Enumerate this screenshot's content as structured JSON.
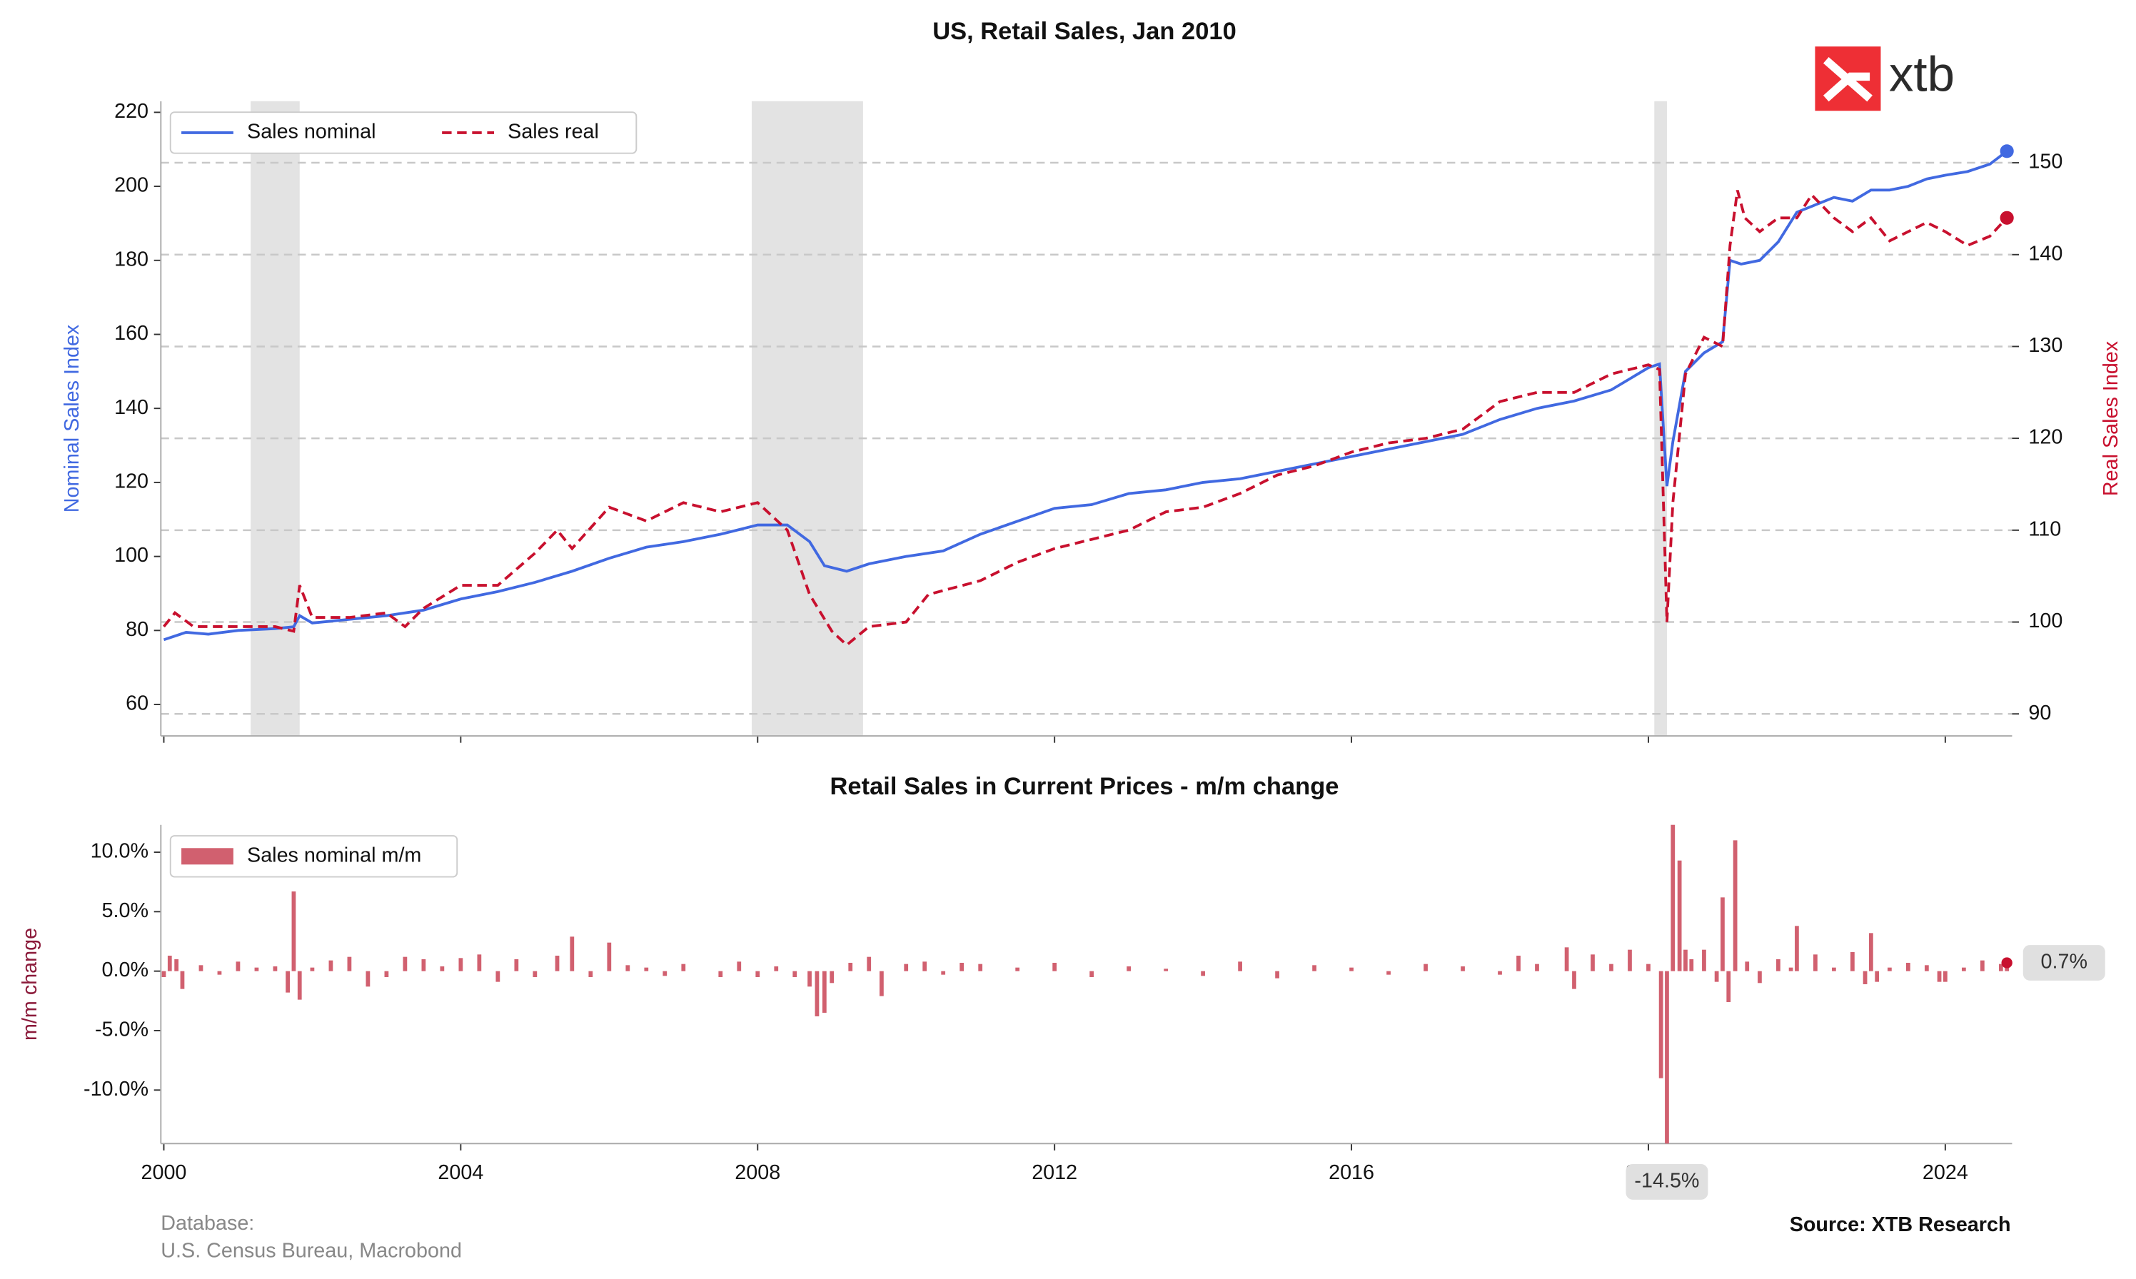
{
  "chart_data": [
    {
      "type": "line",
      "title": "US, Retail Sales, Jan 2010",
      "y_label": "Nominal Sales Index",
      "y2_label": "Real Sales Index",
      "xlim": [
        1999.96,
        2024.9
      ],
      "xticks": [
        2000,
        2004,
        2008,
        2012,
        2016,
        2020,
        2024
      ],
      "ylim": [
        51.5,
        223
      ],
      "yticks": [
        60,
        80,
        100,
        120,
        140,
        160,
        180,
        200,
        220
      ],
      "y2lim": [
        87.6,
        156.7
      ],
      "y2ticks": [
        90,
        100,
        110,
        120,
        130,
        140,
        150
      ],
      "grid": "y2",
      "legend": "upper left",
      "shaded_periods": [
        [
          2001.17,
          2001.83
        ],
        [
          2007.92,
          2009.42
        ],
        [
          2020.08,
          2020.25
        ]
      ],
      "series": [
        {
          "name": "Sales nominal",
          "color": "#4169e1",
          "style": "solid",
          "x": [
            2000.0,
            2000.3,
            2000.6,
            2001.0,
            2001.5,
            2001.75,
            2001.83,
            2002.0,
            2002.5,
            2003.0,
            2003.5,
            2004.0,
            2004.5,
            2005.0,
            2005.5,
            2006.0,
            2006.5,
            2007.0,
            2007.5,
            2008.0,
            2008.4,
            2008.7,
            2008.9,
            2009.2,
            2009.5,
            2010.0,
            2010.5,
            2011.0,
            2011.5,
            2012.0,
            2012.5,
            2013.0,
            2013.5,
            2014.0,
            2014.5,
            2015.0,
            2015.5,
            2016.0,
            2016.5,
            2017.0,
            2017.5,
            2018.0,
            2018.5,
            2019.0,
            2019.5,
            2020.0,
            2020.15,
            2020.25,
            2020.33,
            2020.5,
            2020.75,
            2021.0,
            2021.1,
            2021.25,
            2021.5,
            2021.75,
            2022.0,
            2022.25,
            2022.5,
            2022.75,
            2023.0,
            2023.25,
            2023.5,
            2023.75,
            2024.0,
            2024.3,
            2024.6,
            2024.83
          ],
          "values": [
            77.5,
            79.5,
            79,
            80,
            80.5,
            81,
            84,
            82,
            83,
            84,
            85.5,
            88.5,
            90.5,
            93,
            96,
            99.5,
            102.5,
            104,
            106,
            108.5,
            108.5,
            104,
            97.5,
            96,
            98,
            100,
            101.5,
            106,
            109.5,
            113,
            114,
            117,
            118,
            120,
            121,
            123,
            125,
            127,
            129,
            131,
            133,
            137,
            140,
            142,
            145,
            151,
            152,
            119,
            131,
            150,
            155,
            158,
            180,
            179,
            180,
            185,
            193,
            195,
            197,
            196,
            199,
            199,
            200,
            202,
            203,
            204,
            206,
            209.5
          ]
        },
        {
          "name": "Sales real",
          "color": "#c8102e",
          "style": "dashed",
          "axis": "y2",
          "x": [
            2000.0,
            2000.15,
            2000.4,
            2001.0,
            2001.5,
            2001.75,
            2001.83,
            2002.0,
            2002.5,
            2003.0,
            2003.25,
            2003.5,
            2004.0,
            2004.5,
            2005.0,
            2005.3,
            2005.5,
            2006.0,
            2006.5,
            2007.0,
            2007.5,
            2008.0,
            2008.4,
            2008.7,
            2009.0,
            2009.2,
            2009.5,
            2010.0,
            2010.3,
            2011.0,
            2011.5,
            2012.0,
            2012.5,
            2013.0,
            2013.5,
            2014.0,
            2014.5,
            2015.0,
            2015.5,
            2016.0,
            2016.5,
            2017.0,
            2017.5,
            2018.0,
            2018.5,
            2019.0,
            2019.5,
            2020.0,
            2020.15,
            2020.25,
            2020.33,
            2020.5,
            2020.75,
            2021.0,
            2021.1,
            2021.2,
            2021.3,
            2021.5,
            2021.75,
            2022.0,
            2022.2,
            2022.5,
            2022.75,
            2023.0,
            2023.25,
            2023.5,
            2023.75,
            2024.0,
            2024.3,
            2024.6,
            2024.83
          ],
          "values": [
            99.5,
            101,
            99.5,
            99.5,
            99.5,
            99,
            104,
            100.5,
            100.5,
            101,
            99.5,
            101.5,
            104,
            104,
            107.5,
            110,
            108,
            112.5,
            111,
            113,
            112,
            113,
            110,
            103,
            99,
            97.5,
            99.5,
            100,
            103,
            104.5,
            106.5,
            108,
            109,
            110,
            112,
            112.5,
            114,
            116,
            117,
            118.5,
            119.5,
            120,
            121,
            124,
            125,
            125,
            127,
            128,
            127.5,
            100,
            113,
            127,
            131,
            130,
            141,
            147,
            144,
            142.5,
            144,
            144,
            146.5,
            144,
            142.5,
            144,
            141.5,
            142.5,
            143.5,
            142.5,
            141,
            142,
            144
          ]
        }
      ]
    },
    {
      "type": "bar",
      "title": "Retail Sales in Current Prices - m/m change",
      "y_label": "m/m change",
      "xlim": [
        1999.96,
        2024.9
      ],
      "xticks": [
        2000,
        2004,
        2008,
        2012,
        2016,
        2020,
        2024
      ],
      "ylim": [
        -14.5,
        12.3
      ],
      "yticks": [
        {
          "value": -10,
          "label": "-10.0%"
        },
        {
          "value": -5,
          "label": "-5.0%"
        },
        {
          "value": 0,
          "label": "0.0%"
        },
        {
          "value": 5,
          "label": "5.0%"
        },
        {
          "value": 10,
          "label": "10.0%"
        }
      ],
      "legend": "upper left",
      "series": [
        {
          "name": "Sales nominal m/m",
          "color": "#d1606f",
          "x": [
            2000.0,
            2000.08,
            2000.17,
            2000.25,
            2000.5,
            2000.75,
            2001.0,
            2001.25,
            2001.5,
            2001.67,
            2001.75,
            2001.83,
            2002.0,
            2002.25,
            2002.5,
            2002.75,
            2003.0,
            2003.25,
            2003.5,
            2003.75,
            2004.0,
            2004.25,
            2004.5,
            2004.75,
            2005.0,
            2005.3,
            2005.5,
            2005.75,
            2006.0,
            2006.25,
            2006.5,
            2006.75,
            2007.0,
            2007.5,
            2007.75,
            2008.0,
            2008.25,
            2008.5,
            2008.7,
            2008.8,
            2008.9,
            2009.0,
            2009.25,
            2009.5,
            2009.67,
            2010.0,
            2010.25,
            2010.5,
            2010.75,
            2011.0,
            2011.5,
            2012.0,
            2012.5,
            2013.0,
            2013.5,
            2014.0,
            2014.5,
            2015.0,
            2015.5,
            2016.0,
            2016.5,
            2017.0,
            2017.5,
            2018.0,
            2018.25,
            2018.5,
            2018.9,
            2019.0,
            2019.25,
            2019.5,
            2019.75,
            2020.0,
            2020.17,
            2020.25,
            2020.33,
            2020.42,
            2020.5,
            2020.58,
            2020.75,
            2020.92,
            2021.0,
            2021.08,
            2021.17,
            2021.33,
            2021.5,
            2021.75,
            2021.92,
            2022.0,
            2022.25,
            2022.5,
            2022.75,
            2022.92,
            2023.0,
            2023.08,
            2023.25,
            2023.5,
            2023.75,
            2023.92,
            2024.0,
            2024.25,
            2024.5,
            2024.75,
            2024.83
          ],
          "values": [
            -0.5,
            1.3,
            1.0,
            -1.5,
            0.5,
            -0.3,
            0.8,
            0.3,
            0.4,
            -1.8,
            6.7,
            -2.4,
            0.3,
            0.9,
            1.2,
            -1.3,
            -0.5,
            1.2,
            1.0,
            0.4,
            1.1,
            1.4,
            -0.9,
            1.0,
            -0.5,
            1.3,
            2.9,
            -0.5,
            2.4,
            0.5,
            0.3,
            -0.4,
            0.6,
            -0.5,
            0.8,
            -0.5,
            0.4,
            -0.5,
            -1.3,
            -3.8,
            -3.5,
            -1.0,
            0.7,
            1.2,
            -2.1,
            0.6,
            0.8,
            -0.3,
            0.7,
            0.6,
            0.3,
            0.7,
            -0.5,
            0.4,
            0.2,
            -0.4,
            0.8,
            -0.6,
            0.5,
            0.3,
            -0.3,
            0.6,
            0.4,
            -0.3,
            1.3,
            0.6,
            2.0,
            -1.5,
            1.4,
            0.6,
            1.8,
            0.6,
            -9.0,
            -14.5,
            12.3,
            9.3,
            1.8,
            1.0,
            1.8,
            -0.9,
            6.2,
            -2.6,
            11.0,
            0.8,
            -1.0,
            1.0,
            0.3,
            3.8,
            1.4,
            0.3,
            1.6,
            -1.1,
            3.2,
            -0.9,
            0.3,
            0.7,
            0.5,
            -0.9,
            -0.9,
            0.3,
            0.9,
            0.6,
            0.7
          ]
        }
      ],
      "annotations": [
        {
          "label": "-14.5%",
          "x": 2020.25,
          "value": -14.5,
          "position": "below"
        },
        {
          "label": "0.7%",
          "x": 2024.83,
          "value": 0.7,
          "position": "right"
        }
      ]
    }
  ],
  "logo": "xtb",
  "footer": {
    "database_label": "Database:",
    "database_source": "U.S. Census Bureau, Macrobond",
    "source": "Source: XTB Research"
  }
}
